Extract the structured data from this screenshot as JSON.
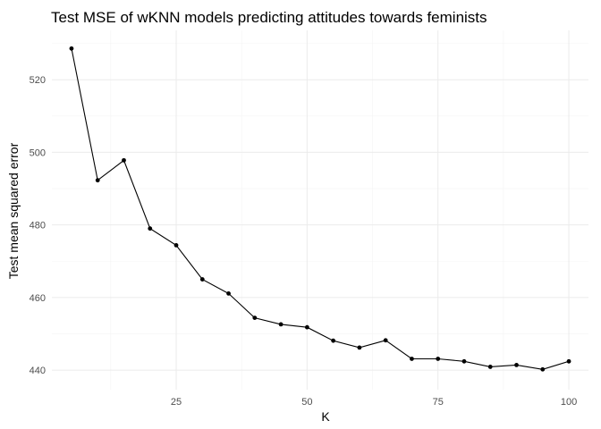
{
  "chart_data": {
    "type": "line",
    "title": "Test MSE of wKNN models predicting attitudes towards feminists",
    "xlabel": "K",
    "ylabel": "Test mean squared error",
    "xlim": [
      1.25,
      103.75
    ],
    "ylim": [
      434.6,
      533.6
    ],
    "x_ticks": [
      25,
      50,
      75,
      100
    ],
    "y_ticks": [
      440,
      460,
      480,
      500,
      520
    ],
    "grid": true,
    "markers": true,
    "series": [
      {
        "x": [
          5,
          10,
          15,
          20,
          25,
          30,
          35,
          40,
          45,
          50,
          55,
          60,
          65,
          70,
          75,
          80,
          85,
          90,
          95,
          100
        ],
        "values": [
          528.6,
          492.3,
          497.8,
          479.0,
          474.4,
          465.0,
          461.1,
          454.4,
          452.6,
          451.8,
          448.1,
          446.2,
          448.2,
          443.1,
          443.1,
          442.4,
          440.9,
          441.4,
          440.2,
          442.4
        ],
        "color": "#000000"
      }
    ]
  }
}
